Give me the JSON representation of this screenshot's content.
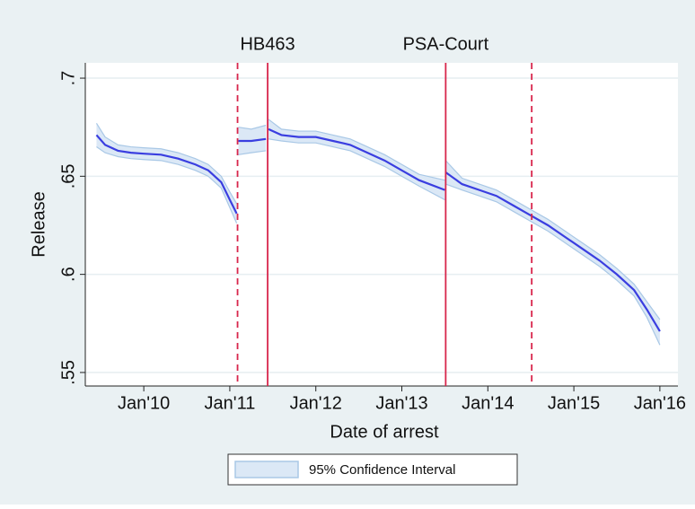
{
  "chart_data": {
    "type": "line",
    "ylabel": "Release",
    "xlabel": "Date of arrest",
    "xlim": [
      2009.32,
      2016.21
    ],
    "ylim": [
      0.5431,
      0.7078
    ],
    "xticks": [
      {
        "value": 2010,
        "label": "Jan'10"
      },
      {
        "value": 2011,
        "label": "Jan'11"
      },
      {
        "value": 2012,
        "label": "Jan'12"
      },
      {
        "value": 2013,
        "label": "Jan'13"
      },
      {
        "value": 2014,
        "label": "Jan'14"
      },
      {
        "value": 2015,
        "label": "Jan'15"
      },
      {
        "value": 2016,
        "label": "Jan'16"
      }
    ],
    "yticks": [
      {
        "value": 0.55,
        "label": ".55"
      },
      {
        "value": 0.6,
        "label": ".6"
      },
      {
        "value": 0.65,
        "label": ".65"
      },
      {
        "value": 0.7,
        "label": ".7"
      }
    ],
    "grid": true,
    "x": [
      2009.45,
      2009.55,
      2009.7,
      2009.85,
      2010.0,
      2010.2,
      2010.4,
      2010.6,
      2010.75,
      2010.9,
      2011.0,
      2011.08,
      2011.09,
      2011.1,
      2011.25,
      2011.42,
      2011.43,
      2011.45,
      2011.6,
      2011.8,
      2012.0,
      2012.2,
      2012.4,
      2012.6,
      2012.8,
      2013.0,
      2013.2,
      2013.5,
      2013.505,
      2013.51,
      2013.7,
      2013.9,
      2014.1,
      2014.3,
      2014.5,
      2014.7,
      2014.9,
      2015.1,
      2015.3,
      2015.5,
      2015.7,
      2015.85,
      2016.0
    ],
    "series": [
      {
        "color": "#3a3ee0",
        "values": [
          0.671,
          0.666,
          0.663,
          0.662,
          0.6615,
          0.661,
          0.659,
          0.656,
          0.653,
          0.647,
          0.638,
          0.631,
          null,
          0.668,
          0.668,
          0.669,
          null,
          0.674,
          0.671,
          0.67,
          0.67,
          0.668,
          0.666,
          0.662,
          0.658,
          0.653,
          0.648,
          0.643,
          null,
          0.652,
          0.646,
          0.643,
          0.64,
          0.635,
          0.63,
          0.625,
          0.619,
          0.613,
          0.607,
          0.6,
          0.592,
          0.582,
          0.571
        ]
      }
    ],
    "band": {
      "name": "95% Confidence Interval",
      "color": "#dbe8f6",
      "edge_color": "#a9c8e6",
      "lower": [
        0.665,
        0.662,
        0.66,
        0.659,
        0.6585,
        0.658,
        0.656,
        0.653,
        0.65,
        0.644,
        0.634,
        0.626,
        null,
        0.661,
        0.662,
        0.663,
        null,
        0.669,
        0.668,
        0.667,
        0.667,
        0.665,
        0.663,
        0.659,
        0.655,
        0.65,
        0.645,
        0.638,
        null,
        0.646,
        0.643,
        0.64,
        0.637,
        0.632,
        0.627,
        0.622,
        0.616,
        0.61,
        0.604,
        0.597,
        0.589,
        0.578,
        0.564
      ],
      "upper": [
        0.677,
        0.67,
        0.666,
        0.665,
        0.6645,
        0.664,
        0.662,
        0.659,
        0.656,
        0.65,
        0.642,
        0.636,
        null,
        0.675,
        0.674,
        0.676,
        null,
        0.679,
        0.674,
        0.673,
        0.673,
        0.671,
        0.669,
        0.665,
        0.661,
        0.656,
        0.651,
        0.648,
        null,
        0.658,
        0.649,
        0.646,
        0.643,
        0.638,
        0.633,
        0.628,
        0.622,
        0.616,
        0.61,
        0.603,
        0.595,
        0.586,
        0.577
      ]
    },
    "vlines": [
      {
        "x": 2011.09,
        "style": "dashed",
        "color": "#d8264c"
      },
      {
        "x": 2011.44,
        "style": "solid",
        "color": "#d8264c",
        "label": "HB463"
      },
      {
        "x": 2013.51,
        "style": "solid",
        "color": "#d8264c",
        "label": "PSA-Court"
      },
      {
        "x": 2014.51,
        "style": "dashed",
        "color": "#d8264c"
      }
    ],
    "legend": "bottom"
  }
}
